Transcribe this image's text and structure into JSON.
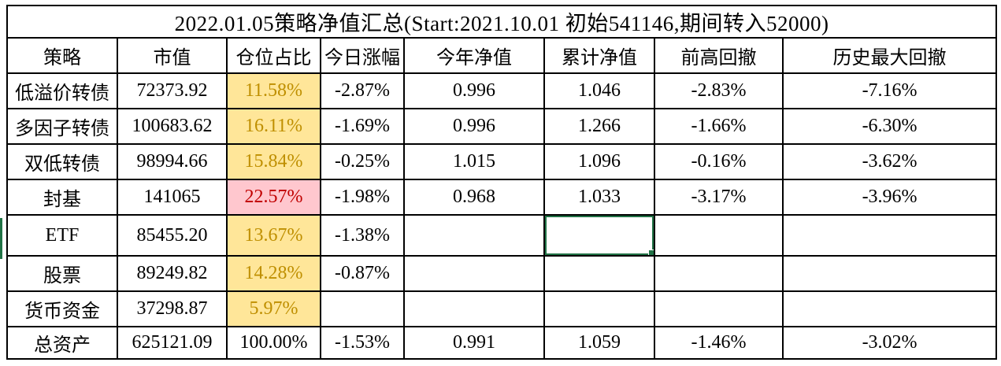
{
  "title": "2022.01.05策略净值汇总(Start:2021.10.01 初始541146,期间转入52000)",
  "columns": [
    "策略",
    "市值",
    "仓位占比",
    "今日涨幅",
    "今年净值",
    "累计净值",
    "前高回撤",
    "历史最大回撤"
  ],
  "rows": [
    {
      "cells": [
        "低溢价转债",
        "72373.92",
        "11.58%",
        "-2.87%",
        "0.996",
        "1.046",
        "-2.83%",
        "-7.16%"
      ],
      "position_highlight": "yellow"
    },
    {
      "cells": [
        "多因子转债",
        "100683.62",
        "16.11%",
        "-1.69%",
        "0.996",
        "1.266",
        "-1.66%",
        "-6.30%"
      ],
      "position_highlight": "yellow"
    },
    {
      "cells": [
        "双低转债",
        "98994.66",
        "15.84%",
        "-0.25%",
        "1.015",
        "1.096",
        "-0.16%",
        "-3.62%"
      ],
      "position_highlight": "yellow"
    },
    {
      "cells": [
        "封基",
        "141065",
        "22.57%",
        "-1.98%",
        "0.968",
        "1.033",
        "-3.17%",
        "-3.96%"
      ],
      "position_highlight": "pink"
    },
    {
      "cells": [
        "ETF",
        "85455.20",
        "13.67%",
        "-1.38%",
        "",
        "",
        "",
        ""
      ],
      "position_highlight": "yellow"
    },
    {
      "cells": [
        "股票",
        "89249.82",
        "14.28%",
        "-0.87%",
        "",
        "",
        "",
        ""
      ],
      "position_highlight": "yellow"
    },
    {
      "cells": [
        "货币资金",
        "37298.87",
        "5.97%",
        "",
        "",
        "",
        "",
        ""
      ],
      "position_highlight": "yellow"
    },
    {
      "cells": [
        "总资产",
        "625121.09",
        "100.00%",
        "-1.53%",
        "0.991",
        "1.059",
        "-1.46%",
        "-3.02%"
      ],
      "position_highlight": "none"
    }
  ],
  "selection": {
    "row_index": 4,
    "col_index": 5,
    "cell_value": ""
  },
  "colors": {
    "highlight_yellow_bg": "#FFE699",
    "highlight_yellow_text": "#BF8F00",
    "highlight_pink_bg": "#FFC7CE",
    "highlight_pink_text": "#C00000",
    "selection_green": "#217346",
    "grid_border": "#000000",
    "background": "#FFFFFF"
  }
}
